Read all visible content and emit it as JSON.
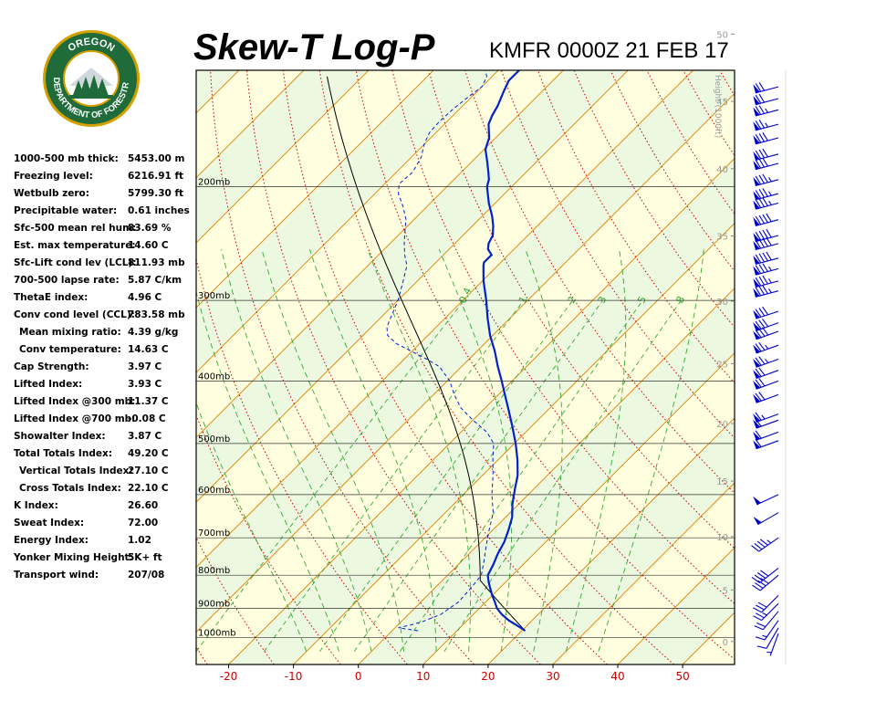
{
  "title": "Skew-T Log-P",
  "station_time": "KMFR 0000Z 21 FEB 17",
  "logo": {
    "top_text": "OREGON",
    "bottom_text": "DEPARTMENT OF FORESTRY",
    "colors": {
      "ring": "#1f6b3a",
      "rim": "#d4a000",
      "sky": "#ffffff",
      "trees": "#1f6b3a"
    }
  },
  "indices": [
    {
      "label": "1000-500 mb thick:",
      "value": "5453.00 m"
    },
    {
      "label": "Freezing level:",
      "value": "6216.91 ft"
    },
    {
      "label": "Wetbulb zero:",
      "value": "5799.30 ft"
    },
    {
      "label": "Precipitable water:",
      "value": "0.61 inches"
    },
    {
      "label": "Sfc-500 mean rel hum:",
      "value": "83.69 %"
    },
    {
      "label": "Est. max temperature:",
      "value": "14.60 C"
    },
    {
      "label": "Sfc-Lift cond lev (LCL):",
      "value": "811.93 mb"
    },
    {
      "label": "700-500 lapse rate:",
      "value": "5.87 C/km"
    },
    {
      "label": "ThetaE index:",
      "value": "4.96 C"
    },
    {
      "label": "Conv cond level (CCL):",
      "value": "783.58 mb"
    },
    {
      "label": "Mean mixing ratio:",
      "value": "4.39 g/kg",
      "indent": true
    },
    {
      "label": "Conv temperature:",
      "value": "14.63 C",
      "indent": true
    },
    {
      "label": "Cap Strength:",
      "value": "3.97 C"
    },
    {
      "label": "Lifted Index:",
      "value": "3.93 C"
    },
    {
      "label": "Lifted Index @300 mb:",
      "value": "11.37 C"
    },
    {
      "label": "Lifted Index @700 mb:",
      "value": "-0.08 C"
    },
    {
      "label": "Showalter Index:",
      "value": "3.87 C"
    },
    {
      "label": "Total Totals Index:",
      "value": "49.20 C"
    },
    {
      "label": "Vertical Totals Index:",
      "value": "27.10 C",
      "indent": true
    },
    {
      "label": "Cross Totals Index:",
      "value": "22.10 C",
      "indent": true
    },
    {
      "label": "K Index:",
      "value": "26.60"
    },
    {
      "label": "Sweat Index:",
      "value": "72.00"
    },
    {
      "label": "Energy Index:",
      "value": "1.02"
    },
    {
      "label": "Yonker Mixing Height:",
      "value": "5K+ ft"
    },
    {
      "label": "Transport wind:",
      "value": "207/08"
    }
  ],
  "chart_data": {
    "type": "line",
    "x_ticks": [
      "-20",
      "-10",
      "0",
      "10",
      "20",
      "30",
      "40",
      "50"
    ],
    "x_range": [
      -25,
      58
    ],
    "y_range_mb": [
      1100,
      132
    ],
    "pressure_labels": [
      "200mb",
      "300mb",
      "400mb",
      "500mb",
      "600mb",
      "700mb",
      "800mb",
      "900mb",
      "1000mb"
    ],
    "pressure_levels": [
      200,
      300,
      400,
      500,
      600,
      700,
      800,
      900,
      1000
    ],
    "height_axis_label": "Height (1000ft)",
    "height_ticks": [
      "0",
      "5",
      "10",
      "15",
      "20",
      "25",
      "30",
      "35",
      "40",
      "45",
      "50"
    ],
    "mixing_ratio_labels": [
      "0.4",
      "1",
      "2",
      "3",
      "5",
      "8"
    ],
    "mixing_ratio_values": [
      0.4,
      1,
      2,
      3,
      5,
      8
    ],
    "colors": {
      "plot_bg": "#ffffe0",
      "band": "#ecf8e0",
      "isotherm": "#e08000",
      "dry_adiabat": "#cc0000",
      "moist_adiabat": "#33aa33",
      "mixing_ratio": "#33aa33",
      "temperature": "#0022cc",
      "dewpoint": "#0022cc",
      "parcel": "#000000",
      "wind": "#0000cc",
      "x_tick_label": "#cc0000",
      "height_label": "#999999"
    },
    "series": [
      {
        "name": "Temperature",
        "points": [
          [
            975,
            20.5
          ],
          [
            960,
            18.8
          ],
          [
            940,
            16.4
          ],
          [
            920,
            14.4
          ],
          [
            900,
            12.7
          ],
          [
            880,
            11.4
          ],
          [
            860,
            10.0
          ],
          [
            840,
            8.7
          ],
          [
            820,
            7.4
          ],
          [
            800,
            6.2
          ],
          [
            770,
            5.4
          ],
          [
            740,
            4.4
          ],
          [
            710,
            3.6
          ],
          [
            680,
            2.4
          ],
          [
            650,
            1.0
          ],
          [
            620,
            -1.0
          ],
          [
            590,
            -2.8
          ],
          [
            560,
            -4.6
          ],
          [
            530,
            -7.0
          ],
          [
            500,
            -9.8
          ],
          [
            470,
            -13.0
          ],
          [
            440,
            -16.5
          ],
          [
            420,
            -19.0
          ],
          [
            400,
            -21.6
          ],
          [
            380,
            -24.4
          ],
          [
            360,
            -27.2
          ],
          [
            340,
            -30.4
          ],
          [
            320,
            -33.4
          ],
          [
            300,
            -36.4
          ],
          [
            280,
            -39.8
          ],
          [
            265,
            -42.2
          ],
          [
            262,
            -42.6
          ],
          [
            255,
            -42.6
          ],
          [
            250,
            -44.0
          ],
          [
            245,
            -44.8
          ],
          [
            238,
            -45.4
          ],
          [
            230,
            -46.8
          ],
          [
            222,
            -48.5
          ],
          [
            212,
            -51.0
          ],
          [
            205,
            -52.6
          ],
          [
            200,
            -53.8
          ],
          [
            195,
            -54.6
          ],
          [
            190,
            -55.8
          ],
          [
            183,
            -57.6
          ],
          [
            175,
            -59.8
          ],
          [
            168,
            -61.0
          ],
          [
            160,
            -63.2
          ],
          [
            155,
            -64.0
          ],
          [
            150,
            -64.6
          ],
          [
            143,
            -65.8
          ],
          [
            137,
            -66.8
          ],
          [
            132,
            -66.8
          ]
        ]
      },
      {
        "name": "Dewpoint",
        "points": [
          [
            975,
            4.0
          ],
          [
            965,
            0.5
          ],
          [
            955,
            2.0
          ],
          [
            945,
            3.2
          ],
          [
            920,
            5.0
          ],
          [
            880,
            5.8
          ],
          [
            840,
            5.6
          ],
          [
            800,
            5.2
          ],
          [
            760,
            3.4
          ],
          [
            720,
            1.4
          ],
          [
            680,
            -0.6
          ],
          [
            640,
            -2.6
          ],
          [
            600,
            -5.6
          ],
          [
            560,
            -8.4
          ],
          [
            530,
            -10.8
          ],
          [
            500,
            -13.2
          ],
          [
            480,
            -16.0
          ],
          [
            460,
            -20.0
          ],
          [
            440,
            -23.8
          ],
          [
            420,
            -26.8
          ],
          [
            400,
            -29.6
          ],
          [
            380,
            -33.4
          ],
          [
            370,
            -36.5
          ],
          [
            360,
            -40.0
          ],
          [
            350,
            -43.6
          ],
          [
            340,
            -46.2
          ],
          [
            330,
            -47.6
          ],
          [
            320,
            -48.4
          ],
          [
            300,
            -50.0
          ],
          [
            280,
            -52.2
          ],
          [
            265,
            -54.0
          ],
          [
            255,
            -56.0
          ],
          [
            245,
            -57.8
          ],
          [
            235,
            -59.5
          ],
          [
            225,
            -61.2
          ],
          [
            215,
            -63.6
          ],
          [
            205,
            -66.4
          ],
          [
            198,
            -67.8
          ],
          [
            190,
            -67.5
          ],
          [
            180,
            -68.5
          ],
          [
            172,
            -70.0
          ],
          [
            165,
            -71.0
          ],
          [
            158,
            -71.2
          ],
          [
            152,
            -71.0
          ],
          [
            145,
            -70.5
          ],
          [
            140,
            -70.0
          ],
          [
            135,
            -70.8
          ],
          [
            132,
            -72.0
          ]
        ]
      }
    ],
    "winds": [
      {
        "mb": 985,
        "dir": 200,
        "kt": 5
      },
      {
        "mb": 965,
        "dir": 210,
        "kt": 10
      },
      {
        "mb": 940,
        "dir": 215,
        "kt": 15
      },
      {
        "mb": 910,
        "dir": 220,
        "kt": 20
      },
      {
        "mb": 885,
        "dir": 225,
        "kt": 25
      },
      {
        "mb": 860,
        "dir": 225,
        "kt": 30
      },
      {
        "mb": 800,
        "dir": 230,
        "kt": 40
      },
      {
        "mb": 780,
        "dir": 232,
        "kt": 40
      },
      {
        "mb": 700,
        "dir": 235,
        "kt": 45
      },
      {
        "mb": 640,
        "dir": 240,
        "kt": 50
      },
      {
        "mb": 600,
        "dir": 245,
        "kt": 50
      },
      {
        "mb": 495,
        "dir": 250,
        "kt": 60
      },
      {
        "mb": 480,
        "dir": 250,
        "kt": 60
      },
      {
        "mb": 460,
        "dir": 250,
        "kt": 60
      },
      {
        "mb": 450,
        "dir": 250,
        "kt": 65
      },
      {
        "mb": 420,
        "dir": 250,
        "kt": 70
      },
      {
        "mb": 400,
        "dir": 250,
        "kt": 70
      },
      {
        "mb": 385,
        "dir": 250,
        "kt": 70
      },
      {
        "mb": 370,
        "dir": 250,
        "kt": 75
      },
      {
        "mb": 352,
        "dir": 250,
        "kt": 75
      },
      {
        "mb": 335,
        "dir": 250,
        "kt": 80
      },
      {
        "mb": 325,
        "dir": 250,
        "kt": 80
      },
      {
        "mb": 312,
        "dir": 252,
        "kt": 80
      },
      {
        "mb": 290,
        "dir": 255,
        "kt": 85
      },
      {
        "mb": 280,
        "dir": 255,
        "kt": 85
      },
      {
        "mb": 268,
        "dir": 255,
        "kt": 85
      },
      {
        "mb": 258,
        "dir": 255,
        "kt": 90
      },
      {
        "mb": 245,
        "dir": 255,
        "kt": 90
      },
      {
        "mb": 238,
        "dir": 255,
        "kt": 90
      },
      {
        "mb": 225,
        "dir": 255,
        "kt": 90
      },
      {
        "mb": 212,
        "dir": 255,
        "kt": 85
      },
      {
        "mb": 205,
        "dir": 255,
        "kt": 85
      },
      {
        "mb": 195,
        "dir": 255,
        "kt": 85
      },
      {
        "mb": 184,
        "dir": 255,
        "kt": 80
      },
      {
        "mb": 178,
        "dir": 255,
        "kt": 80
      },
      {
        "mb": 168,
        "dir": 255,
        "kt": 80
      },
      {
        "mb": 160,
        "dir": 255,
        "kt": 75
      },
      {
        "mb": 152,
        "dir": 255,
        "kt": 75
      },
      {
        "mb": 146,
        "dir": 255,
        "kt": 70
      },
      {
        "mb": 140,
        "dir": 255,
        "kt": 70
      }
    ]
  }
}
